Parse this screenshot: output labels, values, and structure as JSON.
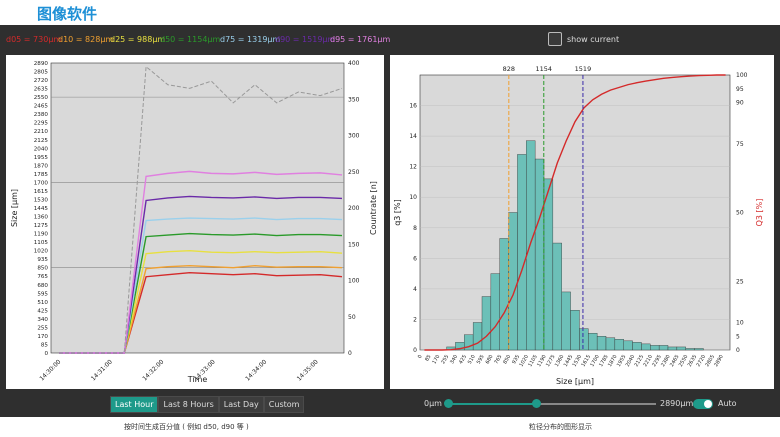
{
  "page_title": "图像软件",
  "stats": [
    {
      "label": "d05 = 730µm",
      "color": "#d42a2a"
    },
    {
      "label": "d10 = 828µm",
      "color": "#f0a030"
    },
    {
      "label": "d25 = 988µm",
      "color": "#e8e040"
    },
    {
      "label": "d50 = 1154µm",
      "color": "#2a9a2a"
    },
    {
      "label": "d75 = 1319µm",
      "color": "#9ad0ec"
    },
    {
      "label": "d90 = 1519µm",
      "color": "#6a2aa8"
    },
    {
      "label": "d95 = 1761µm",
      "color": "#e080e0"
    }
  ],
  "show_current_label": "show current",
  "time_chart": {
    "xlabel": "Time",
    "ylabel_left": "Size [µm]",
    "ylabel_right": "Countrate [n]",
    "x_ticks": [
      "14:30:00",
      "14:31:00",
      "14:32:00",
      "14:33:00",
      "14:34:00",
      "14:35:00"
    ],
    "y_left_ticks": [
      "0",
      "85",
      "170",
      "255",
      "340",
      "425",
      "510",
      "595",
      "680",
      "765",
      "850",
      "935",
      "1020",
      "1105",
      "1190",
      "1275",
      "1360",
      "1445",
      "1530",
      "1615",
      "1700",
      "1785",
      "1870",
      "1955",
      "2040",
      "2125",
      "2210",
      "2295",
      "2380",
      "2465",
      "2550",
      "2635",
      "2720",
      "2805",
      "2890"
    ],
    "y_right_ticks": [
      "0",
      "50",
      "100",
      "150",
      "200",
      "250",
      "300",
      "350",
      "400"
    ]
  },
  "chart_data": [
    {
      "type": "line",
      "title": "",
      "xlabel": "Time",
      "ylabel": "Size [µm]",
      "y2label": "Countrate [n]",
      "ylim": [
        0,
        2890
      ],
      "y2lim": [
        0,
        400
      ],
      "x": [
        "14:30:00",
        "14:30:15",
        "14:30:30",
        "14:30:45",
        "14:31:00",
        "14:31:30",
        "14:32:00",
        "14:32:30",
        "14:33:00",
        "14:33:30",
        "14:34:00",
        "14:34:30",
        "14:35:00",
        "14:35:30"
      ],
      "series": [
        {
          "name": "d05",
          "color": "#d42a2a",
          "values": [
            0,
            0,
            0,
            0,
            760,
            780,
            800,
            790,
            780,
            790,
            770,
            775,
            780,
            760
          ]
        },
        {
          "name": "d10",
          "color": "#f0a030",
          "values": [
            0,
            0,
            0,
            0,
            840,
            860,
            870,
            860,
            850,
            870,
            855,
            860,
            860,
            850
          ]
        },
        {
          "name": "d25",
          "color": "#e8e040",
          "values": [
            0,
            0,
            0,
            0,
            990,
            1010,
            1020,
            1005,
            1000,
            1010,
            1000,
            1005,
            1010,
            995
          ]
        },
        {
          "name": "d50",
          "color": "#2a9a2a",
          "values": [
            0,
            0,
            0,
            0,
            1160,
            1175,
            1190,
            1180,
            1175,
            1185,
            1170,
            1180,
            1180,
            1170
          ]
        },
        {
          "name": "d75",
          "color": "#9ad0ec",
          "values": [
            0,
            0,
            0,
            0,
            1320,
            1335,
            1345,
            1340,
            1335,
            1345,
            1330,
            1340,
            1340,
            1330
          ]
        },
        {
          "name": "d90",
          "color": "#6a2aa8",
          "values": [
            0,
            0,
            0,
            0,
            1520,
            1545,
            1560,
            1550,
            1545,
            1555,
            1540,
            1550,
            1550,
            1540
          ]
        },
        {
          "name": "d95",
          "color": "#e080e0",
          "values": [
            0,
            0,
            0,
            0,
            1760,
            1790,
            1810,
            1790,
            1785,
            1800,
            1780,
            1790,
            1795,
            1775
          ]
        },
        {
          "name": "countrate",
          "axis": "right",
          "color": "#999999",
          "dashed": true,
          "values": [
            0,
            0,
            0,
            0,
            395,
            370,
            365,
            375,
            345,
            370,
            345,
            360,
            355,
            365
          ]
        }
      ]
    },
    {
      "type": "bar",
      "title": "",
      "xlabel": "Size [µm]",
      "ylabel": "q3 [%]",
      "y2label": "Q3 [%]",
      "ylim": [
        0,
        18
      ],
      "y2lim": [
        0,
        100
      ],
      "markers": [
        828,
        1154,
        1519
      ],
      "categories": [
        "0",
        "85",
        "170",
        "255",
        "340",
        "425",
        "510",
        "595",
        "680",
        "765",
        "850",
        "935",
        "1020",
        "1105",
        "1190",
        "1275",
        "1360",
        "1445",
        "1530",
        "1615",
        "1700",
        "1785",
        "1870",
        "1955",
        "2040",
        "2125",
        "2210",
        "2295",
        "2380",
        "2465",
        "2550",
        "2635",
        "2720",
        "2805",
        "2890"
      ],
      "values": [
        0,
        0,
        0,
        0.2,
        0.5,
        1.0,
        1.8,
        3.5,
        5.0,
        7.3,
        9.0,
        12.8,
        13.7,
        12.5,
        11.2,
        7.0,
        3.8,
        2.6,
        1.4,
        1.1,
        0.9,
        0.8,
        0.7,
        0.6,
        0.5,
        0.4,
        0.3,
        0.3,
        0.2,
        0.2,
        0.1,
        0.1,
        0,
        0,
        0
      ],
      "cumulative": [
        0,
        0,
        0,
        0.1,
        0.5,
        1.2,
        2.5,
        5.0,
        8.5,
        13.5,
        20,
        29,
        39,
        48,
        58,
        68,
        76,
        83,
        88,
        91,
        93,
        94.5,
        95.5,
        96.5,
        97.2,
        97.8,
        98.3,
        98.8,
        99.1,
        99.4,
        99.6,
        99.8,
        99.9,
        100,
        100
      ]
    }
  ],
  "dist_chart": {
    "xlabel": "Size [µm]",
    "ylabel_left": "q3 [%]",
    "ylabel_right": "Q3 [%]",
    "marker_labels": [
      "828",
      "1154",
      "1519"
    ],
    "y_left_ticks": [
      "0",
      "2",
      "4",
      "6",
      "8",
      "10",
      "12",
      "14",
      "16"
    ],
    "y_right_ticks": [
      "0",
      "5",
      "10",
      "25",
      "50",
      "75",
      "90",
      "95",
      "100"
    ]
  },
  "controls": {
    "buttons": [
      "Last Hour",
      "Last 8 Hours",
      "Last Day",
      "Custom"
    ],
    "active": "Last Hour",
    "slider_min": "0µm",
    "slider_max": "2890µm",
    "auto_label": "Auto"
  },
  "captions": {
    "left": "按时间生成百分值 ( 例如 d50, d90 等 )",
    "right": "粒径分布的图形显示"
  }
}
